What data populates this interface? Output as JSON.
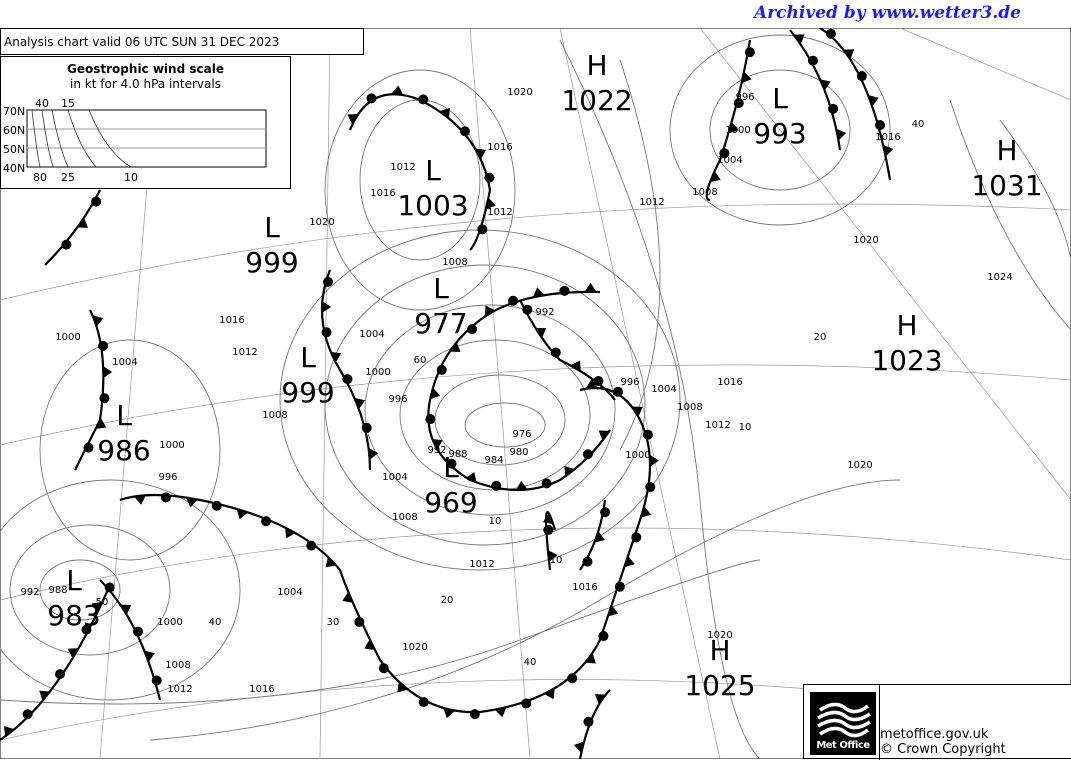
{
  "archive_note": "Archived by www.wetter3.de",
  "chart_header": "Analysis chart  valid 06 UTC SUN 31  DEC 2023",
  "wind_scale": {
    "title": "Geostrophic wind scale",
    "subtitle": "in kt for 4.0 hPa intervals",
    "latitudes": [
      "70N",
      "60N",
      "50N",
      "40N"
    ],
    "top_labels": [
      "40",
      "15"
    ],
    "bottom_labels": [
      "80",
      "25",
      "10"
    ]
  },
  "pressure_centres": [
    {
      "type": "H",
      "value": "1022"
    },
    {
      "type": "L",
      "value": "993"
    },
    {
      "type": "H",
      "value": "1031"
    },
    {
      "type": "L",
      "value": "1003"
    },
    {
      "type": "L",
      "value": "999"
    },
    {
      "type": "L",
      "value": "977"
    },
    {
      "type": "L",
      "value": "999"
    },
    {
      "type": "H",
      "value": "1023"
    },
    {
      "type": "L",
      "value": "986"
    },
    {
      "type": "L",
      "value": "969"
    },
    {
      "type": "L",
      "value": "983"
    },
    {
      "type": "H",
      "value": "1025"
    }
  ],
  "isobar_labels": [
    "1020",
    "1016",
    "1012",
    "1016",
    "1012",
    "1008",
    "1004",
    "1000",
    "996",
    "992",
    "988",
    "984",
    "980",
    "976",
    "992",
    "1000",
    "996",
    "1004",
    "1008",
    "1012",
    "1016",
    "1020",
    "1004",
    "1008",
    "1012",
    "1016",
    "1000",
    "992",
    "988",
    "1000",
    "1004",
    "1008",
    "1012",
    "1016",
    "1020",
    "996",
    "1000",
    "1004",
    "1008",
    "1012",
    "1016",
    "1020",
    "1024",
    "1020",
    "1020",
    "1016",
    "1012",
    "1008",
    "1004",
    "1000",
    "996"
  ],
  "wind_labels": [
    "40",
    "20",
    "10",
    "60",
    "50",
    "40",
    "30",
    "20",
    "10",
    "40",
    "10"
  ],
  "footer": {
    "logo_text": "Met Office",
    "site": "metoffice.gov.uk",
    "copyright": "© Crown Copyright"
  },
  "colors": {
    "archive_text": "#1a1aff",
    "lines": "#000000",
    "isobars": "#888888"
  }
}
